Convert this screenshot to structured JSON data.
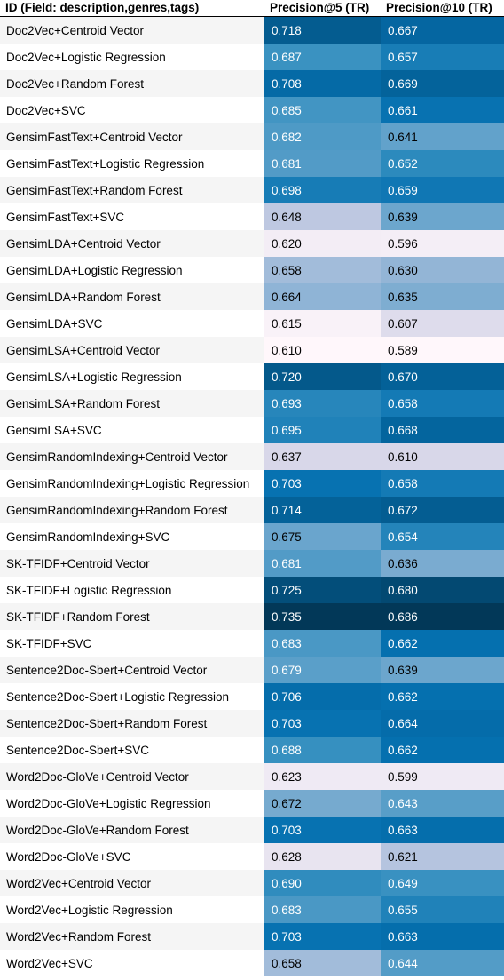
{
  "chart_data": {
    "type": "table",
    "columns": [
      "ID (Field: description,genres,tags)",
      "Precision@5 (TR)",
      "Precision@10 (TR)"
    ],
    "rows": [
      [
        "Doc2Vec+Centroid Vector",
        "0.718",
        "0.667"
      ],
      [
        "Doc2Vec+Logistic Regression",
        "0.687",
        "0.657"
      ],
      [
        "Doc2Vec+Random Forest",
        "0.708",
        "0.669"
      ],
      [
        "Doc2Vec+SVC",
        "0.685",
        "0.661"
      ],
      [
        "GensimFastText+Centroid Vector",
        "0.682",
        "0.641"
      ],
      [
        "GensimFastText+Logistic Regression",
        "0.681",
        "0.652"
      ],
      [
        "GensimFastText+Random Forest",
        "0.698",
        "0.659"
      ],
      [
        "GensimFastText+SVC",
        "0.648",
        "0.639"
      ],
      [
        "GensimLDA+Centroid Vector",
        "0.620",
        "0.596"
      ],
      [
        "GensimLDA+Logistic Regression",
        "0.658",
        "0.630"
      ],
      [
        "GensimLDA+Random Forest",
        "0.664",
        "0.635"
      ],
      [
        "GensimLDA+SVC",
        "0.615",
        "0.607"
      ],
      [
        "GensimLSA+Centroid Vector",
        "0.610",
        "0.589"
      ],
      [
        "GensimLSA+Logistic Regression",
        "0.720",
        "0.670"
      ],
      [
        "GensimLSA+Random Forest",
        "0.693",
        "0.658"
      ],
      [
        "GensimLSA+SVC",
        "0.695",
        "0.668"
      ],
      [
        "GensimRandomIndexing+Centroid Vector",
        "0.637",
        "0.610"
      ],
      [
        "GensimRandomIndexing+Logistic Regression",
        "0.703",
        "0.658"
      ],
      [
        "GensimRandomIndexing+Random Forest",
        "0.714",
        "0.672"
      ],
      [
        "GensimRandomIndexing+SVC",
        "0.675",
        "0.654"
      ],
      [
        "SK-TFIDF+Centroid Vector",
        "0.681",
        "0.636"
      ],
      [
        "SK-TFIDF+Logistic Regression",
        "0.725",
        "0.680"
      ],
      [
        "SK-TFIDF+Random Forest",
        "0.735",
        "0.686"
      ],
      [
        "SK-TFIDF+SVC",
        "0.683",
        "0.662"
      ],
      [
        "Sentence2Doc-Sbert+Centroid Vector",
        "0.679",
        "0.639"
      ],
      [
        "Sentence2Doc-Sbert+Logistic Regression",
        "0.706",
        "0.662"
      ],
      [
        "Sentence2Doc-Sbert+Random Forest",
        "0.703",
        "0.664"
      ],
      [
        "Sentence2Doc-Sbert+SVC",
        "0.688",
        "0.662"
      ],
      [
        "Word2Doc-GloVe+Centroid Vector",
        "0.623",
        "0.599"
      ],
      [
        "Word2Doc-GloVe+Logistic Regression",
        "0.672",
        "0.643"
      ],
      [
        "Word2Doc-GloVe+Random Forest",
        "0.703",
        "0.663"
      ],
      [
        "Word2Doc-GloVe+SVC",
        "0.628",
        "0.621"
      ],
      [
        "Word2Vec+Centroid Vector",
        "0.690",
        "0.649"
      ],
      [
        "Word2Vec+Logistic Regression",
        "0.683",
        "0.655"
      ],
      [
        "Word2Vec+Random Forest",
        "0.703",
        "0.663"
      ],
      [
        "Word2Vec+SVC",
        "0.658",
        "0.644"
      ]
    ],
    "colormap": {
      "light": "#fff7fb",
      "mid": "#3690c0",
      "dark": "#023858",
      "text_on_dark": "#ffffff",
      "text_on_light": "#000000"
    }
  }
}
